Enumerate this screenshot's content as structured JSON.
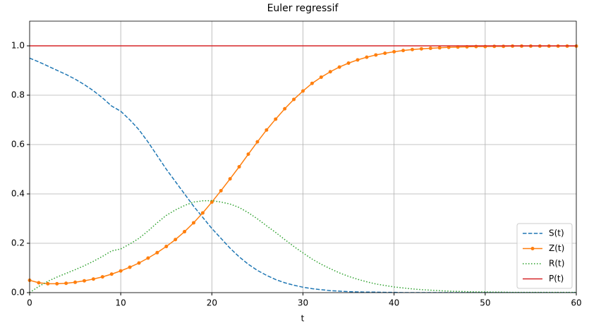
{
  "chart_data": {
    "type": "line",
    "title": "Euler regressif",
    "xlabel": "t",
    "x": [
      0,
      1,
      2,
      3,
      4,
      5,
      6,
      7,
      8,
      9,
      10,
      11,
      12,
      13,
      14,
      15,
      16,
      17,
      18,
      19,
      20,
      21,
      22,
      23,
      24,
      25,
      26,
      27,
      28,
      29,
      30,
      31,
      32,
      33,
      34,
      35,
      36,
      37,
      38,
      39,
      40,
      41,
      42,
      43,
      44,
      45,
      46,
      47,
      48,
      49,
      50,
      51,
      52,
      53,
      54,
      55,
      56,
      57,
      58,
      59,
      60
    ],
    "series": [
      {
        "name": "S(t)",
        "color": "#1f77b4",
        "linestyle": "dashed",
        "values": [
          0.95,
          0.935,
          0.918,
          0.901,
          0.884,
          0.865,
          0.843,
          0.818,
          0.789,
          0.756,
          0.735,
          0.7,
          0.66,
          0.61,
          0.555,
          0.5,
          0.45,
          0.4,
          0.35,
          0.305,
          0.26,
          0.22,
          0.18,
          0.145,
          0.115,
          0.09,
          0.07,
          0.053,
          0.04,
          0.03,
          0.022,
          0.016,
          0.012,
          0.008,
          0.006,
          0.004,
          0.003,
          0.002,
          0.002,
          0.001,
          0.001,
          0,
          0,
          0,
          0,
          0,
          0,
          0,
          0,
          0,
          0,
          0,
          0,
          0,
          0,
          0,
          0,
          0,
          0,
          0,
          0
        ]
      },
      {
        "name": "Z(t)",
        "color": "#ff7f0e",
        "linestyle": "solid",
        "marker": true,
        "values": [
          0.05,
          0.04,
          0.036,
          0.036,
          0.038,
          0.042,
          0.048,
          0.055,
          0.064,
          0.075,
          0.088,
          0.103,
          0.12,
          0.14,
          0.162,
          0.187,
          0.215,
          0.247,
          0.283,
          0.323,
          0.367,
          0.413,
          0.461,
          0.51,
          0.561,
          0.611,
          0.659,
          0.703,
          0.745,
          0.783,
          0.817,
          0.848,
          0.873,
          0.895,
          0.914,
          0.93,
          0.943,
          0.954,
          0.963,
          0.97,
          0.976,
          0.981,
          0.985,
          0.988,
          0.99,
          0.992,
          0.994,
          0.995,
          0.996,
          0.997,
          0.997,
          0.998,
          0.998,
          0.999,
          0.999,
          0.999,
          0.999,
          0.999,
          0.999,
          0.999,
          0.999
        ]
      },
      {
        "name": "R(t)",
        "color": "#2ca02c",
        "linestyle": "dotted",
        "values": [
          0,
          0.025,
          0.046,
          0.063,
          0.078,
          0.093,
          0.109,
          0.127,
          0.147,
          0.169,
          0.177,
          0.197,
          0.22,
          0.25,
          0.283,
          0.313,
          0.335,
          0.353,
          0.367,
          0.372,
          0.373,
          0.367,
          0.359,
          0.345,
          0.324,
          0.299,
          0.271,
          0.244,
          0.215,
          0.187,
          0.161,
          0.136,
          0.115,
          0.097,
          0.08,
          0.066,
          0.054,
          0.044,
          0.035,
          0.029,
          0.023,
          0.019,
          0.015,
          0.012,
          0.01,
          0.008,
          0.006,
          0.005,
          0.004,
          0.003,
          0.003,
          0.002,
          0.002,
          0.001,
          0.001,
          0.001,
          0.001,
          0.001,
          0.001,
          0.001,
          0.001
        ]
      },
      {
        "name": "P(t)",
        "color": "#d62728",
        "linestyle": "solid",
        "values": [
          1,
          1,
          1,
          1,
          1,
          1,
          1,
          1,
          1,
          1,
          1,
          1,
          1,
          1,
          1,
          1,
          1,
          1,
          1,
          1,
          1,
          1,
          1,
          1,
          1,
          1,
          1,
          1,
          1,
          1,
          1,
          1,
          1,
          1,
          1,
          1,
          1,
          1,
          1,
          1,
          1,
          1,
          1,
          1,
          1,
          1,
          1,
          1,
          1,
          1,
          1,
          1,
          1,
          1,
          1,
          1,
          1,
          1,
          1,
          1,
          1
        ]
      }
    ],
    "xlim": [
      0,
      60
    ],
    "xticks": [
      0,
      10,
      20,
      30,
      40,
      50,
      60
    ],
    "ylim": [
      0,
      1.1
    ],
    "yticks": [
      {
        "value": 0,
        "label": "0.0"
      },
      {
        "value": 0.2,
        "label": "0.2"
      },
      {
        "value": 0.4,
        "label": "0.4"
      },
      {
        "value": 0.6,
        "label": "0.6"
      },
      {
        "value": 0.8,
        "label": "0.8"
      },
      {
        "value": 1.0,
        "label": "1.0"
      }
    ],
    "grid": true,
    "legend": "lower right"
  }
}
